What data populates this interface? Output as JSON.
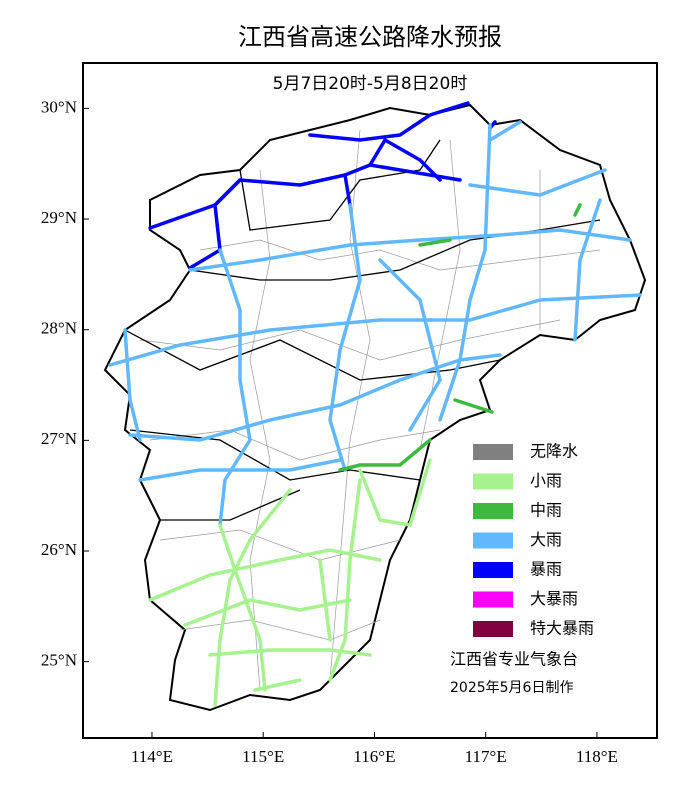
{
  "title": "江西省高速公路降水预报",
  "subtitle": "5月7日20时-5月8日20时",
  "map": {
    "xlim": [
      113.38,
      118.54
    ],
    "ylim": [
      24.31,
      30.41
    ],
    "xticks": [
      {
        "value": 114,
        "label": "114°E"
      },
      {
        "value": 115,
        "label": "115°E"
      },
      {
        "value": 116,
        "label": "116°E"
      },
      {
        "value": 117,
        "label": "117°E"
      },
      {
        "value": 118,
        "label": "118°E"
      }
    ],
    "yticks": [
      {
        "value": 25,
        "label": "25°N"
      },
      {
        "value": 26,
        "label": "26°N"
      },
      {
        "value": 27,
        "label": "27°N"
      },
      {
        "value": 28,
        "label": "28°N"
      },
      {
        "value": 29,
        "label": "29°N"
      },
      {
        "value": 30,
        "label": "30°N"
      }
    ]
  },
  "legend": {
    "items": [
      {
        "label": "无降水",
        "color": "#808080"
      },
      {
        "label": "小雨",
        "color": "#a6f28f"
      },
      {
        "label": "中雨",
        "color": "#3dba3d"
      },
      {
        "label": "大雨",
        "color": "#61b8ff"
      },
      {
        "label": "暴雨",
        "color": "#0000ff"
      },
      {
        "label": "大暴雨",
        "color": "#fa00fa"
      },
      {
        "label": "特大暴雨",
        "color": "#800040"
      }
    ]
  },
  "credit": {
    "agency": "江西省专业气象台",
    "date": "2025年5月6日制作"
  }
}
